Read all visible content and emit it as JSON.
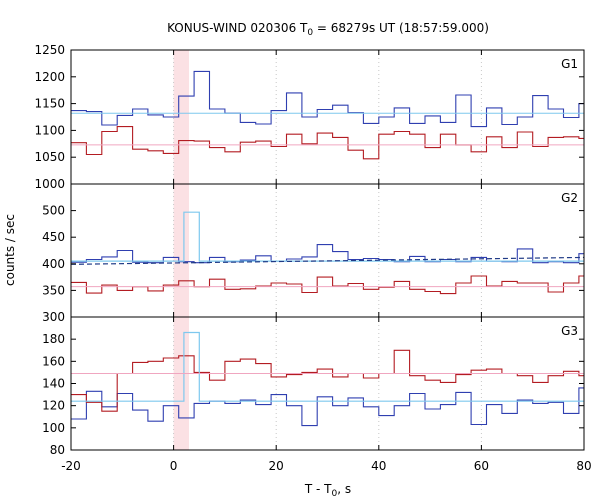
{
  "chart_data": {
    "type": "line",
    "title_main": "KONUS-WIND 020306 T",
    "title_sub": "0",
    "title_rest": " = 68279s UT (18:57:59.000)",
    "xlabel_main": "T - T",
    "xlabel_sub": "0",
    "xlabel_rest": ", s",
    "ylabel": "counts / sec",
    "xlim": [
      -20,
      80
    ],
    "xticks": [
      -20,
      0,
      20,
      40,
      60,
      80
    ],
    "x_tick_labels": [
      "-20",
      "0",
      "20",
      "40",
      "60",
      "80"
    ],
    "highlight_interval": [
      0,
      3
    ],
    "colors": {
      "blue": "#2f3fb0",
      "red": "#b31c22",
      "lightblue": "#7ec8ee",
      "pink": "#f0a6c0",
      "highlight": "#fbe1e4",
      "dashed": "#1f3a86"
    },
    "panels": [
      {
        "label": "G1",
        "ylim": [
          1000,
          1250
        ],
        "yticks": [
          1000,
          1050,
          1100,
          1150,
          1200,
          1250
        ],
        "y_tick_labels": [
          "1000",
          "1050",
          "1100",
          "1150",
          "1200",
          "1250"
        ],
        "series": [
          {
            "color": "blue",
            "x": [
              -20,
              -17,
              -14,
              -11,
              -8,
              -5,
              -2,
              1,
              4,
              7,
              10,
              13,
              16,
              19,
              22,
              25,
              28,
              31,
              34,
              37,
              40,
              43,
              46,
              49,
              52,
              55,
              58,
              61,
              64,
              67,
              70,
              73,
              76,
              79,
              80
            ],
            "y": [
              1137,
              1135,
              1110,
              1128,
              1140,
              1129,
              1125,
              1164,
              1210,
              1140,
              1132,
              1115,
              1112,
              1137,
              1170,
              1125,
              1139,
              1147,
              1133,
              1113,
              1125,
              1142,
              1113,
              1127,
              1115,
              1166,
              1107,
              1142,
              1111,
              1125,
              1165,
              1140,
              1124,
              1150,
              1150
            ]
          },
          {
            "color": "red",
            "x": [
              -20,
              -17,
              -14,
              -11,
              -8,
              -5,
              -2,
              1,
              4,
              7,
              10,
              13,
              16,
              19,
              22,
              25,
              28,
              31,
              34,
              37,
              40,
              43,
              46,
              49,
              52,
              55,
              58,
              61,
              64,
              67,
              70,
              73,
              76,
              79,
              80
            ],
            "y": [
              1077,
              1055,
              1098,
              1107,
              1065,
              1062,
              1057,
              1081,
              1080,
              1068,
              1060,
              1078,
              1080,
              1070,
              1093,
              1075,
              1095,
              1087,
              1063,
              1047,
              1093,
              1098,
              1093,
              1068,
              1093,
              1073,
              1060,
              1088,
              1068,
              1097,
              1070,
              1087,
              1088,
              1085,
              1055
            ]
          },
          {
            "color": "lightblue",
            "level": 1132
          },
          {
            "color": "pink",
            "level": 1073
          }
        ]
      },
      {
        "label": "G2",
        "ylim": [
          300,
          550
        ],
        "yticks": [
          300,
          350,
          400,
          450,
          500
        ],
        "y_tick_labels": [
          "300",
          "350",
          "400",
          "450",
          "500"
        ],
        "series": [
          {
            "color": "blue",
            "x": [
              -20,
              -17,
              -14,
              -11,
              -8,
              -5,
              -2,
              1,
              4,
              7,
              10,
              13,
              16,
              19,
              22,
              25,
              28,
              31,
              34,
              37,
              40,
              43,
              46,
              49,
              52,
              55,
              58,
              61,
              64,
              67,
              70,
              73,
              76,
              79,
              80
            ],
            "y": [
              403,
              408,
              413,
              425,
              403,
              402,
              412,
              404,
              402,
              412,
              404,
              407,
              415,
              405,
              409,
              413,
              436,
              423,
              408,
              410,
              408,
              404,
              414,
              404,
              408,
              404,
              412,
              405,
              404,
              428,
              402,
              404,
              402,
              419,
              408
            ]
          },
          {
            "color": "red",
            "x": [
              -20,
              -17,
              -14,
              -11,
              -8,
              -5,
              -2,
              1,
              4,
              7,
              10,
              13,
              16,
              19,
              22,
              25,
              28,
              31,
              34,
              37,
              40,
              43,
              46,
              49,
              52,
              55,
              58,
              61,
              64,
              67,
              70,
              73,
              76,
              79,
              80
            ],
            "y": [
              365,
              345,
              360,
              350,
              357,
              349,
              360,
              368,
              357,
              371,
              352,
              353,
              358,
              364,
              362,
              346,
              375,
              358,
              363,
              352,
              356,
              367,
              352,
              348,
              344,
              364,
              377,
              358,
              367,
              364,
              364,
              347,
              364,
              377,
              377
            ]
          },
          {
            "color": "lightblue",
            "x": [
              -20,
              2,
              2,
              5,
              5,
              80
            ],
            "y": [
              405,
              405,
              497,
              497,
              405,
              405
            ]
          },
          {
            "color": "dashed",
            "x": [
              -20,
              80
            ],
            "y": [
              399,
              412
            ]
          },
          {
            "color": "pink",
            "level": 357
          }
        ]
      },
      {
        "label": "G3",
        "ylim": [
          80,
          200
        ],
        "yticks": [
          80,
          100,
          120,
          140,
          160,
          180
        ],
        "y_tick_labels": [
          "80",
          "100",
          "120",
          "140",
          "160",
          "180"
        ],
        "series": [
          {
            "color": "blue",
            "x": [
              -20,
              -17,
              -14,
              -11,
              -8,
              -5,
              -2,
              1,
              4,
              7,
              10,
              13,
              16,
              19,
              22,
              25,
              28,
              31,
              34,
              37,
              40,
              43,
              46,
              49,
              52,
              55,
              58,
              61,
              64,
              67,
              70,
              73,
              76,
              79,
              80
            ],
            "y": [
              108,
              133,
              119,
              131,
              116,
              106,
              120,
              109,
              122,
              124,
              122,
              125,
              121,
              130,
              120,
              102,
              128,
              120,
              127,
              119,
              111,
              120,
              131,
              117,
              121,
              132,
              103,
              121,
              113,
              125,
              122,
              123,
              113,
              136,
              125
            ]
          },
          {
            "color": "red",
            "x": [
              -20,
              -17,
              -14,
              -11,
              -8,
              -5,
              -2,
              1,
              4,
              7,
              10,
              13,
              16,
              19,
              22,
              25,
              28,
              31,
              34,
              37,
              40,
              43,
              46,
              49,
              52,
              55,
              58,
              61,
              64,
              67,
              70,
              73,
              76,
              79,
              80
            ],
            "y": [
              130,
              123,
              115,
              149,
              159,
              160,
              163,
              165,
              150,
              143,
              160,
              162,
              158,
              146,
              148,
              150,
              153,
              146,
              149,
              145,
              149,
              170,
              147,
              143,
              141,
              148,
              152,
              153,
              149,
              147,
              141,
              147,
              151,
              147,
              147
            ]
          },
          {
            "color": "lightblue",
            "x": [
              -20,
              2,
              2,
              5,
              5,
              80
            ],
            "y": [
              124,
              124,
              186,
              186,
              124,
              124
            ]
          },
          {
            "color": "pink",
            "level": 149
          }
        ]
      }
    ]
  }
}
